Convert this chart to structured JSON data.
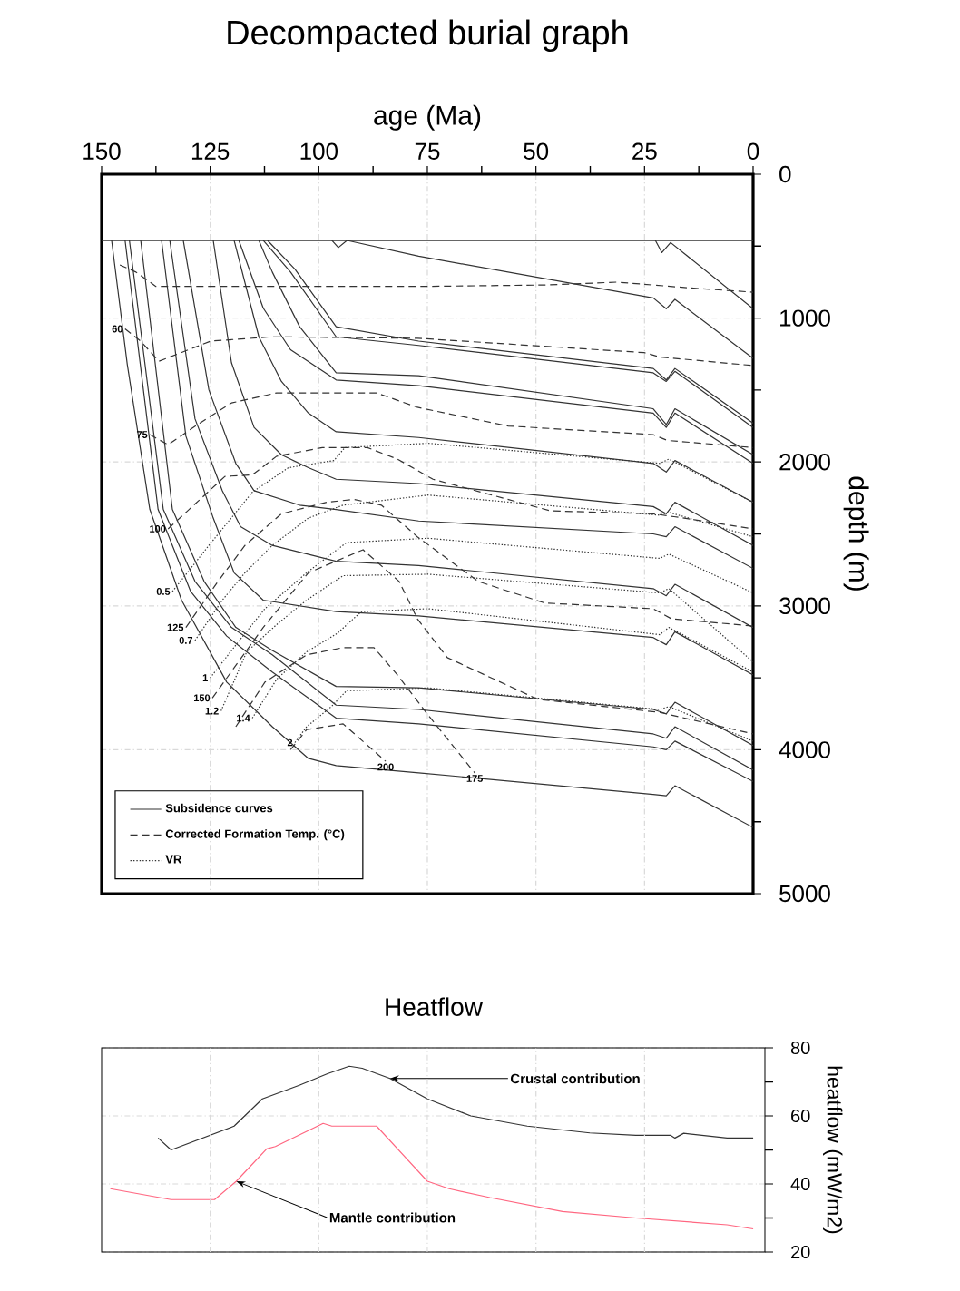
{
  "chart_data": [
    {
      "type": "line",
      "title": "Decompacted burial graph",
      "xlabel": "age (Ma)",
      "ylabel": "depth (m)",
      "xlim": [
        150,
        0
      ],
      "xticks": [
        150,
        {
          "value": 137.5,
          "label": null
        },
        125,
        {
          "value": 112.5,
          "label": null
        },
        100,
        {
          "value": 87.5,
          "label": null
        },
        75,
        {
          "value": 62.5,
          "label": null
        },
        50,
        {
          "value": 37.5,
          "label": null
        },
        25,
        {
          "value": 12.5,
          "label": null
        },
        0
      ],
      "ylim": [
        5000,
        0
      ],
      "yticks": [
        0,
        {
          "value": 500,
          "label": null
        },
        1000,
        {
          "value": 1500,
          "label": null
        },
        2000,
        {
          "value": 2500,
          "label": null
        },
        3000,
        {
          "value": 3500,
          "label": null
        },
        4000,
        {
          "value": 4500,
          "label": null
        },
        5000
      ],
      "grid": true,
      "legend": "bottom left",
      "ref_lines": [
        {
          "axis": "y",
          "value": 460,
          "color": "#333333"
        }
      ],
      "annotations": [
        {
          "text": "60",
          "x": 144.6,
          "y": 1075
        },
        {
          "text": "75",
          "x": 138.9,
          "y": 1810
        },
        {
          "text": "100",
          "x": 134.7,
          "y": 2465
        },
        {
          "text": "0.5",
          "x": 133.7,
          "y": 2900
        },
        {
          "text": "125",
          "x": 130.6,
          "y": 3150
        },
        {
          "text": "0.7",
          "x": 128.5,
          "y": 3240
        },
        {
          "text": "1",
          "x": 125,
          "y": 3500
        },
        {
          "text": "150",
          "x": 124.5,
          "y": 3640
        },
        {
          "text": "1.2",
          "x": 122.5,
          "y": 3730
        },
        {
          "text": "1.4",
          "x": 115.3,
          "y": 3780
        },
        {
          "text": "2",
          "x": 105.5,
          "y": 3950
        },
        {
          "text": "200",
          "x": 84.6,
          "y": 4080
        },
        {
          "text": "175",
          "x": 64.1,
          "y": 4160
        }
      ],
      "series": [
        {
          "name": "Subsidence curves",
          "color": "#333333",
          "line_style": "solid",
          "x": [
            22.5,
            21,
            19,
            0
          ],
          "values": [
            460,
            545,
            475,
            935
          ]
        },
        {
          "color": "#333333",
          "line_style": "solid",
          "x": [
            97,
            95.5,
            93.5,
            77,
            23,
            20,
            18,
            0
          ],
          "values": [
            460,
            510,
            460,
            570,
            860,
            935,
            870,
            1280
          ]
        },
        {
          "color": "#333333",
          "line_style": "solid",
          "x": [
            111.8,
            105.5,
            96,
            77,
            23,
            20,
            18,
            0
          ],
          "values": [
            460,
            660,
            1060,
            1160,
            1350,
            1430,
            1350,
            1730
          ]
        },
        {
          "color": "#333333",
          "line_style": "solid",
          "x": [
            112.8,
            106.5,
            96,
            77,
            23,
            20,
            18,
            0
          ],
          "values": [
            460,
            680,
            1130,
            1190,
            1380,
            1440,
            1370,
            1760
          ]
        },
        {
          "color": "#333333",
          "line_style": "solid",
          "x": [
            113.8,
            110.7,
            104.4,
            96,
            77,
            23,
            20,
            18,
            0
          ],
          "values": [
            460,
            680,
            1060,
            1380,
            1400,
            1630,
            1740,
            1630,
            1950
          ]
        },
        {
          "color": "#333333",
          "line_style": "solid",
          "x": [
            118.4,
            112.8,
            106.5,
            96,
            77,
            23,
            20,
            18,
            0
          ],
          "values": [
            460,
            930,
            1220,
            1430,
            1470,
            1660,
            1760,
            1660,
            2010
          ]
        },
        {
          "color": "#333333",
          "line_style": "solid",
          "x": [
            119.5,
            113.8,
            108.6,
            102.4,
            96,
            77,
            23,
            20,
            18,
            0
          ],
          "values": [
            460,
            1130,
            1440,
            1660,
            1790,
            1830,
            2010,
            2070,
            1990,
            2280
          ]
        },
        {
          "color": "#333333",
          "line_style": "solid",
          "x": [
            124.3,
            120.1,
            114.9,
            108.6,
            102.4,
            96,
            77,
            23,
            20,
            18,
            0
          ],
          "values": [
            460,
            1310,
            1760,
            1950,
            2040,
            2120,
            2150,
            2310,
            2360,
            2280,
            2580
          ]
        },
        {
          "color": "#333333",
          "line_style": "solid",
          "x": [
            131.2,
            125.3,
            119.1,
            114.9,
            104.4,
            96,
            77,
            23,
            20,
            18,
            0
          ],
          "values": [
            460,
            1500,
            2010,
            2200,
            2300,
            2330,
            2410,
            2500,
            2520,
            2450,
            2740
          ]
        },
        {
          "color": "#333333",
          "line_style": "solid",
          "x": [
            134.3,
            128.5,
            122.2,
            118,
            110.7,
            96,
            77,
            23,
            20,
            18,
            0
          ],
          "values": [
            460,
            1700,
            2200,
            2450,
            2580,
            2690,
            2720,
            2880,
            2930,
            2850,
            3150
          ]
        },
        {
          "color": "#333333",
          "line_style": "solid",
          "x": [
            136.2,
            130.6,
            124.3,
            119.5,
            112.8,
            96,
            77,
            23,
            20,
            18,
            0
          ],
          "values": [
            460,
            1820,
            2390,
            2770,
            2960,
            3040,
            3070,
            3220,
            3270,
            3180,
            3480
          ]
        },
        {
          "color": "#333333",
          "line_style": "solid",
          "x": [
            141,
            133.7,
            126.4,
            119.1,
            110.7,
            96,
            77,
            23,
            20,
            18,
            0
          ],
          "values": [
            460,
            2330,
            2830,
            3150,
            3310,
            3560,
            3570,
            3720,
            3750,
            3670,
            3970
          ]
        },
        {
          "color": "#333333",
          "line_style": "solid",
          "x": [
            143.6,
            135.8,
            128.5,
            120.1,
            110.7,
            96,
            77,
            23,
            20,
            18,
            0
          ],
          "values": [
            460,
            2330,
            2830,
            3150,
            3340,
            3690,
            3720,
            3890,
            3920,
            3840,
            4140
          ]
        },
        {
          "color": "#333333",
          "line_style": "solid",
          "x": [
            144.6,
            137,
            129.5,
            121.2,
            110.7,
            96,
            77,
            23,
            20,
            18,
            0
          ],
          "values": [
            460,
            2330,
            2900,
            3210,
            3460,
            3780,
            3820,
            3980,
            4000,
            3940,
            4220
          ]
        },
        {
          "color": "#333333",
          "line_style": "solid",
          "x": [
            147.7,
            144.1,
            138.9,
            131.6,
            121.2,
            110.7,
            102.4,
            96,
            77,
            23,
            20,
            18,
            0
          ],
          "values": [
            460,
            1320,
            2330,
            2960,
            3530,
            3840,
            4060,
            4110,
            4160,
            4310,
            4320,
            4250,
            4540
          ]
        },
        {
          "name": "Corrected Formation Temp. (°C)",
          "color": "#333333",
          "line_style": "dashed",
          "x": [
            145.8,
            142.1,
            137.5,
            121.2,
            89.8,
            77.3,
            48,
            31.3,
            14.6,
            0
          ],
          "values": [
            630,
            680,
            780,
            780,
            780,
            780,
            770,
            750,
            790,
            820
          ]
        },
        {
          "color": "#333333",
          "line_style": "dashed",
          "x": [
            144.6,
            141,
            136.8,
            124.9,
            110.7,
            77.3,
            25.1,
            21.5,
            0
          ],
          "values": [
            1075,
            1160,
            1300,
            1160,
            1130,
            1140,
            1240,
            1270,
            1330
          ]
        },
        {
          "color": "#333333",
          "line_style": "dashed",
          "x": [
            138.9,
            134.7,
            127.4,
            120.1,
            109.7,
            95.7,
            86.7,
            77.3,
            56.4,
            23,
            19.8,
            0
          ],
          "values": [
            1810,
            1880,
            1730,
            1590,
            1520,
            1520,
            1520,
            1620,
            1750,
            1810,
            1850,
            1900
          ]
        },
        {
          "color": "#333333",
          "line_style": "dashed",
          "x": [
            134.7,
            121.6,
            115.3,
            109.7,
            99.2,
            88.8,
            81.9,
            73.7,
            46.6,
            23,
            18.2,
            0
          ],
          "values": [
            2465,
            2100,
            2090,
            1960,
            1900,
            1900,
            1980,
            2120,
            2340,
            2360,
            2380,
            2465
          ]
        },
        {
          "color": "#333333",
          "line_style": "dashed",
          "x": [
            130.6,
            123.2,
            117,
            108.6,
            98.2,
            91.9,
            85.6,
            77.3,
            63.3,
            48,
            23,
            18.8,
            0
          ],
          "values": [
            3150,
            2830,
            2580,
            2360,
            2280,
            2260,
            2300,
            2520,
            2830,
            2980,
            3020,
            3090,
            3140
          ]
        },
        {
          "color": "#333333",
          "line_style": "dashed",
          "x": [
            124.5,
            112.8,
            102.4,
            89.8,
            81.5,
            77.3,
            70.4,
            49.5,
            21.5,
            0
          ],
          "values": [
            3640,
            3150,
            2770,
            2610,
            2830,
            3090,
            3360,
            3650,
            3740,
            3890
          ]
        },
        {
          "color": "#333333",
          "line_style": "dashed",
          "x": [
            119.1,
            112.4,
            102.8,
            94.4,
            87.3,
            81.9,
            74.8,
            64.1
          ],
          "values": [
            3840,
            3530,
            3340,
            3290,
            3290,
            3480,
            3760,
            4160
          ]
        },
        {
          "color": "#333333",
          "line_style": "dashed",
          "x": [
            106.5,
            102.8,
            94.4,
            84.6
          ],
          "values": [
            4000,
            3860,
            3820,
            4080
          ]
        },
        {
          "name": "VR",
          "color": "#333333",
          "line_style": "dotted",
          "x": [
            133.7,
            125.3,
            115.3,
            107,
            96.5,
            94,
            74.8,
            21.5,
            19.4,
            0
          ],
          "values": [
            2900,
            2580,
            2210,
            2040,
            1990,
            1900,
            1870,
            2010,
            1980,
            2280
          ]
        },
        {
          "color": "#333333",
          "line_style": "dotted",
          "x": [
            128.5,
            122.2,
            117,
            110.7,
            102.4,
            94.4,
            74.8,
            21.5,
            19.4,
            0
          ],
          "values": [
            3240,
            2960,
            2770,
            2580,
            2390,
            2300,
            2230,
            2370,
            2350,
            2520
          ]
        },
        {
          "color": "#333333",
          "line_style": "dotted",
          "x": [
            125,
            118,
            112.4,
            102.8,
            93.6,
            74.8,
            21.5,
            19.4,
            0
          ],
          "values": [
            3500,
            3230,
            3020,
            2770,
            2560,
            2530,
            2670,
            2640,
            2910
          ]
        },
        {
          "color": "#333333",
          "line_style": "dotted",
          "x": [
            122.5,
            116.6,
            109.7,
            102.8,
            94.4,
            74.8,
            21.5,
            19.4,
            0
          ],
          "values": [
            3730,
            3320,
            3130,
            2960,
            2790,
            2780,
            2910,
            2880,
            3390
          ]
        },
        {
          "color": "#333333",
          "line_style": "dotted",
          "x": [
            115.3,
            109.7,
            102.8,
            95.7,
            90.2,
            74.8,
            21.5,
            19.4,
            0
          ],
          "values": [
            3780,
            3510,
            3320,
            3190,
            3040,
            3020,
            3200,
            3150,
            3460
          ]
        },
        {
          "color": "#333333",
          "line_style": "dotted",
          "x": [
            105.5,
            102.8,
            97.1,
            93.6,
            74.8,
            21.5,
            19.4,
            0
          ],
          "values": [
            3950,
            3840,
            3700,
            3590,
            3570,
            3720,
            3700,
            3940
          ]
        }
      ]
    },
    {
      "type": "line",
      "title": "Heatflow",
      "ylabel": "heatflow (mW/m2)",
      "xlim": [
        150,
        -2.7
      ],
      "xticks": [
        125,
        100,
        75,
        50,
        25
      ],
      "tick_labels": "y",
      "ylim": [
        20,
        80
      ],
      "yticks": [
        20,
        {
          "value": 30,
          "label": null
        },
        40,
        {
          "value": 50,
          "label": null
        },
        60,
        {
          "value": 70,
          "label": null
        },
        80
      ],
      "grid": true,
      "series": [
        {
          "name": "Crustal contribution",
          "color": "#333333",
          "line_style": "solid",
          "x": [
            137,
            134,
            119.5,
            113,
            104.5,
            98,
            93,
            90,
            83.6,
            75,
            65,
            52,
            37.6,
            27,
            19,
            18,
            16,
            6,
            0
          ],
          "values": [
            53.5,
            50,
            57,
            65,
            69,
            72.4,
            74.6,
            74,
            71,
            65,
            60,
            57,
            55,
            54.3,
            54.3,
            53.5,
            54.9,
            53.5,
            53.5
          ]
        },
        {
          "name": "Mantle contribution",
          "color": "#ff6680",
          "line_style": "solid",
          "x": [
            148,
            134,
            124,
            119,
            112,
            110,
            99,
            97,
            86.7,
            75,
            70,
            60.6,
            43.9,
            27,
            6,
            0
          ],
          "values": [
            38.6,
            35.4,
            35.4,
            40.8,
            50.3,
            51,
            57.8,
            57,
            57,
            40.8,
            38.6,
            36,
            31.9,
            30,
            28,
            26.8
          ]
        }
      ]
    }
  ]
}
